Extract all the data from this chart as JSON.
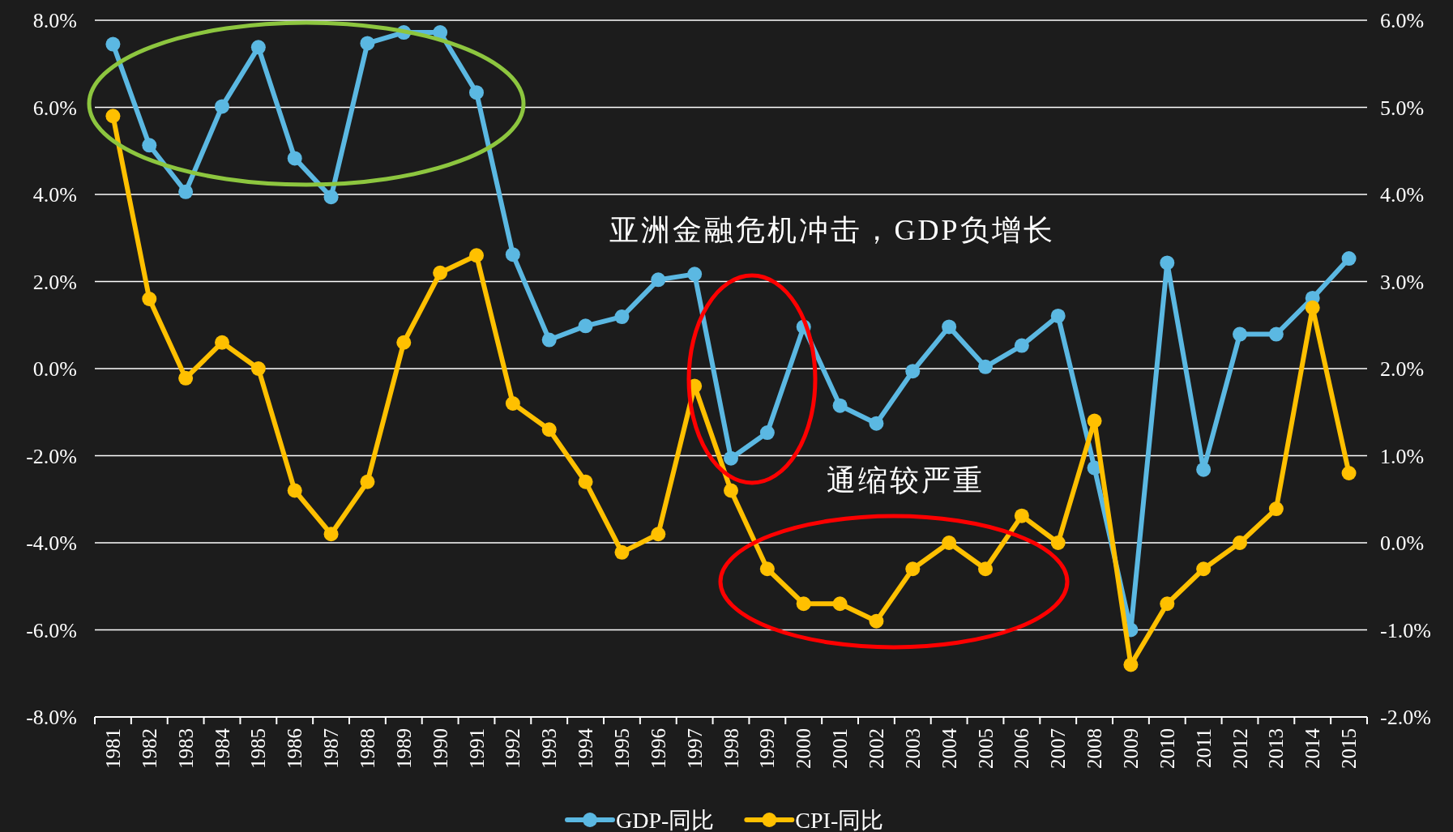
{
  "chart_data": {
    "type": "line",
    "categories": [
      "1981",
      "1982",
      "1983",
      "1984",
      "1985",
      "1986",
      "1987",
      "1988",
      "1989",
      "1990",
      "1991",
      "1992",
      "1993",
      "1994",
      "1995",
      "1996",
      "1997",
      "1998",
      "1999",
      "2000",
      "2001",
      "2002",
      "2003",
      "2004",
      "2005",
      "2006",
      "2007",
      "2008",
      "2009",
      "2010",
      "2011",
      "2012",
      "2013",
      "2014",
      "2015"
    ],
    "series": [
      {
        "name": "GDP-同比",
        "color": "#5bb8e2",
        "values": [
          7.45,
          5.13,
          4.06,
          6.02,
          7.38,
          4.83,
          3.94,
          7.47,
          7.72,
          7.72,
          6.34,
          2.62,
          0.66,
          0.98,
          1.19,
          2.04,
          2.17,
          -2.06,
          -1.47,
          0.96,
          -0.85,
          -1.26,
          -0.06,
          0.96,
          0.04,
          0.53,
          1.21,
          -2.28,
          -6.0,
          2.43,
          -2.32,
          0.79,
          0.79,
          1.62,
          2.53
        ]
      },
      {
        "name": "CPI-同比",
        "color": "#ffc000",
        "axis": "y2",
        "values": [
          4.9,
          2.8,
          1.89,
          2.3,
          2.0,
          0.6,
          0.1,
          0.7,
          2.3,
          3.1,
          3.3,
          1.6,
          1.3,
          0.7,
          -0.11,
          0.1,
          1.8,
          0.6,
          -0.3,
          -0.7,
          -0.7,
          -0.9,
          -0.3,
          0.0,
          -0.3,
          0.31,
          0.0,
          1.4,
          -1.4,
          -0.7,
          -0.3,
          0.0,
          0.39,
          2.7,
          0.8
        ]
      }
    ],
    "ylim": [
      -8,
      8
    ],
    "yticks": [
      {
        "value": -8,
        "label": "-8.0%"
      },
      {
        "value": -6,
        "label": "-6.0%"
      },
      {
        "value": -4,
        "label": "-4.0%"
      },
      {
        "value": -2,
        "label": "-2.0%"
      },
      {
        "value": 0,
        "label": "0.0%"
      },
      {
        "value": 2,
        "label": "2.0%"
      },
      {
        "value": 4,
        "label": "4.0%"
      },
      {
        "value": 6,
        "label": "6.0%"
      },
      {
        "value": 8,
        "label": "8.0%"
      }
    ],
    "y2lim": [
      -2,
      6
    ],
    "y2ticks": [
      {
        "value": -2,
        "label": "-2.0%"
      },
      {
        "value": -1,
        "label": "-1.0%"
      },
      {
        "value": 0,
        "label": "0.0%"
      },
      {
        "value": 1,
        "label": "1.0%"
      },
      {
        "value": 2,
        "label": "2.0%"
      },
      {
        "value": 3,
        "label": "3.0%"
      },
      {
        "value": 4,
        "label": "4.0%"
      },
      {
        "value": 5,
        "label": "5.0%"
      },
      {
        "value": 6,
        "label": "6.0%"
      }
    ],
    "annotations": [
      "亚洲金融危机冲击，GDP负增长",
      "通缩较严重"
    ],
    "grid": "y",
    "legend": "bottom",
    "marker": "circle",
    "line_style": "solid"
  }
}
